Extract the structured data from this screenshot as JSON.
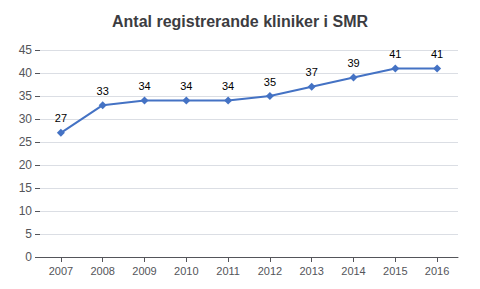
{
  "chart_data": {
    "type": "line",
    "title": "Antal registrerande kliniker i SMR",
    "x": [
      2007,
      2008,
      2009,
      2010,
      2011,
      2012,
      2013,
      2014,
      2015,
      2016
    ],
    "values": [
      27,
      33,
      34,
      34,
      34,
      35,
      37,
      39,
      41,
      41
    ],
    "color": "#4472c4",
    "marker": "diamond",
    "line_style": "solid",
    "xlim": [
      2006.5,
      2016.5
    ],
    "xticks": [
      2007,
      2008,
      2009,
      2010,
      2011,
      2012,
      2013,
      2014,
      2015,
      2016
    ],
    "ylim": [
      0,
      45
    ],
    "yticks": [
      0,
      5,
      10,
      15,
      20,
      25,
      30,
      35,
      40,
      45
    ],
    "grid": true,
    "data_labels": true
  }
}
